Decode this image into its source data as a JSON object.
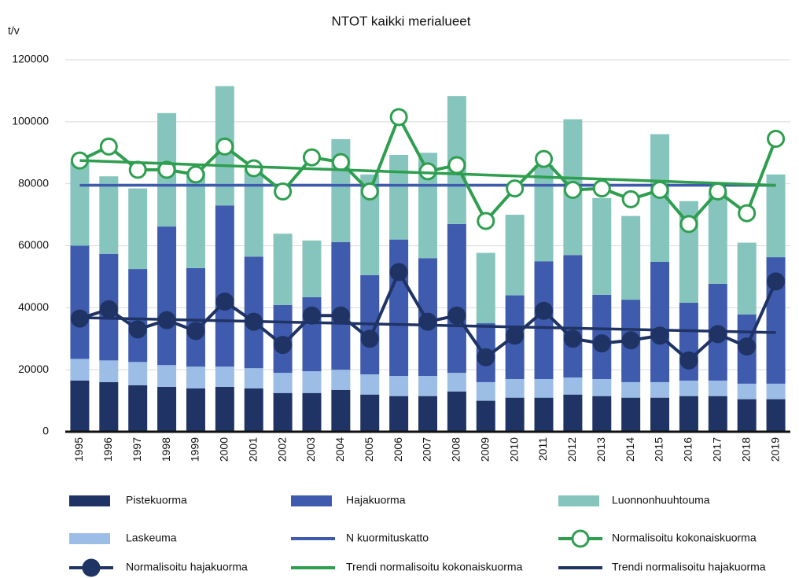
{
  "chart_data": {
    "type": "bar",
    "title": "NTOT kaikki merialueet",
    "y_label": "t/v",
    "stacked": true,
    "grid": true,
    "legend": "bottom",
    "categories": [
      "1995",
      "1996",
      "1997",
      "1998",
      "1999",
      "2000",
      "2001",
      "2002",
      "2003",
      "2004",
      "2005",
      "2006",
      "2007",
      "2008",
      "2009",
      "2010",
      "2011",
      "2012",
      "2013",
      "2014",
      "2015",
      "2016",
      "2017",
      "2018",
      "2019"
    ],
    "ylim": [
      0,
      120000
    ],
    "yticks": [
      0,
      20000,
      40000,
      60000,
      80000,
      100000,
      120000
    ],
    "series": [
      {
        "name": "Pistekuorma",
        "kind": "bar",
        "color": "#1f3364",
        "values": [
          16500,
          16000,
          15000,
          14500,
          14000,
          14500,
          14000,
          12500,
          12500,
          13500,
          12000,
          11500,
          11500,
          13000,
          10000,
          11000,
          11000,
          12000,
          11500,
          11000,
          11000,
          11500,
          11500,
          10500,
          10500
        ]
      },
      {
        "name": "Hajakuorma",
        "kind": "bar",
        "color": "#3f5bae",
        "values": [
          36500,
          34400,
          30000,
          44700,
          31800,
          52000,
          36000,
          21900,
          23900,
          41200,
          32000,
          44000,
          38000,
          48000,
          19000,
          27000,
          38000,
          39500,
          27200,
          26600,
          38800,
          25100,
          31200,
          22300,
          40800
        ]
      },
      {
        "name": "Luonnonhuuhtouma",
        "kind": "bar",
        "color": "#86c5bd",
        "values": [
          27000,
          25000,
          26000,
          36600,
          31000,
          38500,
          28400,
          23000,
          18300,
          33200,
          32500,
          27300,
          34000,
          41300,
          22700,
          26000,
          31000,
          43800,
          31200,
          27000,
          41200,
          32800,
          29300,
          23200,
          26700
        ]
      },
      {
        "name": "Laskeuma",
        "kind": "bar",
        "color": "#9bbde6",
        "values": [
          7000,
          7000,
          7500,
          7000,
          7000,
          6500,
          6500,
          6500,
          7000,
          6500,
          6500,
          6500,
          6500,
          6000,
          6000,
          6000,
          6000,
          5500,
          5500,
          5000,
          5000,
          5000,
          5000,
          5000,
          5000
        ]
      },
      {
        "name": "N kuormituskatto",
        "kind": "line",
        "color": "#3f5bae",
        "values": [
          79500,
          79500,
          79500,
          79500,
          79500,
          79500,
          79500,
          79500,
          79500,
          79500,
          79500,
          79500,
          79500,
          79500,
          79500,
          79500,
          79500,
          79500,
          79500,
          79500,
          79500,
          79500,
          79500,
          79500,
          79500
        ]
      },
      {
        "name": "Normalisoitu kokonaiskuorma",
        "kind": "line",
        "marker": "hollow",
        "color": "#2e9e4f",
        "values": [
          87500,
          92000,
          84500,
          84500,
          83000,
          92000,
          85000,
          77500,
          88500,
          87000,
          77500,
          101500,
          84000,
          86000,
          68000,
          78500,
          88000,
          78000,
          78500,
          75000,
          78000,
          67000,
          77500,
          70500,
          94500
        ]
      },
      {
        "name": "Normalisoitu hajakuorma",
        "kind": "line",
        "marker": "filled",
        "color": "#1f3364",
        "values": [
          36500,
          39500,
          33000,
          36000,
          32500,
          42000,
          35500,
          28000,
          37500,
          37500,
          30000,
          51500,
          35500,
          37500,
          24000,
          31000,
          39000,
          30000,
          28500,
          29500,
          31000,
          23000,
          31500,
          27500,
          48500
        ]
      },
      {
        "name": "Trendi normalisoitu kokonaiskuorma",
        "kind": "line",
        "color": "#2e9e4f",
        "values": [
          87500,
          87170,
          86830,
          86500,
          86170,
          85830,
          85500,
          85170,
          84830,
          84500,
          84170,
          83830,
          83500,
          83170,
          82830,
          82500,
          82170,
          81830,
          81500,
          81170,
          80830,
          80500,
          80170,
          79830,
          79500
        ]
      },
      {
        "name": "Trendi normalisoitu hajakuorma",
        "kind": "line",
        "color": "#1f3364",
        "values": [
          36800,
          36600,
          36400,
          36200,
          36000,
          35800,
          35600,
          35400,
          35200,
          35000,
          34800,
          34600,
          34400,
          34200,
          34000,
          33800,
          33600,
          33400,
          33200,
          33000,
          32800,
          32600,
          32400,
          32200,
          32000
        ]
      }
    ]
  }
}
